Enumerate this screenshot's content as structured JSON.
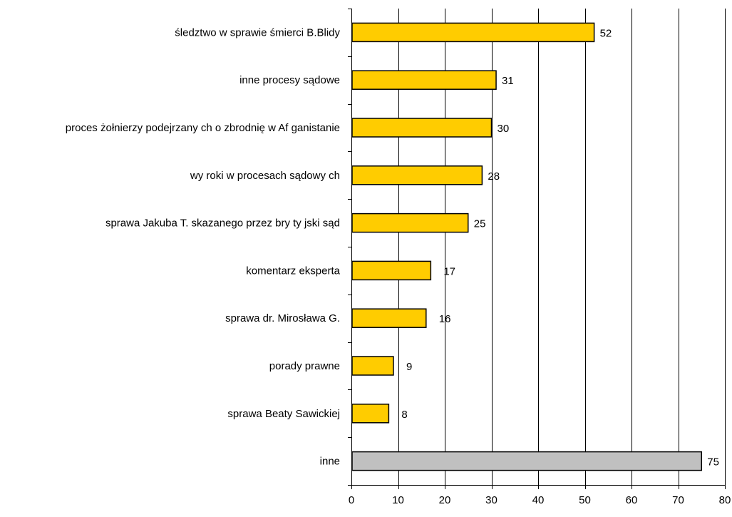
{
  "chart_data": {
    "type": "bar",
    "orientation": "horizontal",
    "title": "",
    "xlabel": "",
    "ylabel": "",
    "categories": [
      "śledztwo w sprawie śmierci B.Blidy",
      "inne procesy sądowe",
      "proces żołnierzy podejrzany ch o zbrodnię w Af ganistanie",
      "wy roki w procesach sądowy ch",
      "sprawa Jakuba T. skazanego przez bry ty jski sąd",
      "komentarz eksperta",
      "sprawa dr. Mirosława G.",
      "porady prawne",
      "sprawa Beaty Sawickiej",
      "inne"
    ],
    "values": [
      52,
      31,
      30,
      28,
      25,
      17,
      16,
      9,
      8,
      75
    ],
    "value_labels": [
      "52",
      "31",
      "30",
      "28",
      "25",
      "17",
      "16",
      "9",
      "8",
      "75"
    ],
    "bar_colors": [
      "#FFCC00",
      "#FFCC00",
      "#FFCC00",
      "#FFCC00",
      "#FFCC00",
      "#FFCC00",
      "#FFCC00",
      "#FFCC00",
      "#FFCC00",
      "#C0C0C0"
    ],
    "xlim": [
      0,
      80
    ],
    "x_ticks": [
      0,
      10,
      20,
      30,
      40,
      50,
      60,
      70,
      80
    ],
    "x_tick_labels": [
      "0",
      "10",
      "20",
      "30",
      "40",
      "50",
      "60",
      "70",
      "80"
    ],
    "grid": "vertical",
    "legend": "none"
  },
  "colors": {
    "highlight_bar": "#FFCC00",
    "other_bar": "#C0C0C0",
    "bar_border": "#000000",
    "gridline": "#000000",
    "background": "#FFFFFF"
  }
}
